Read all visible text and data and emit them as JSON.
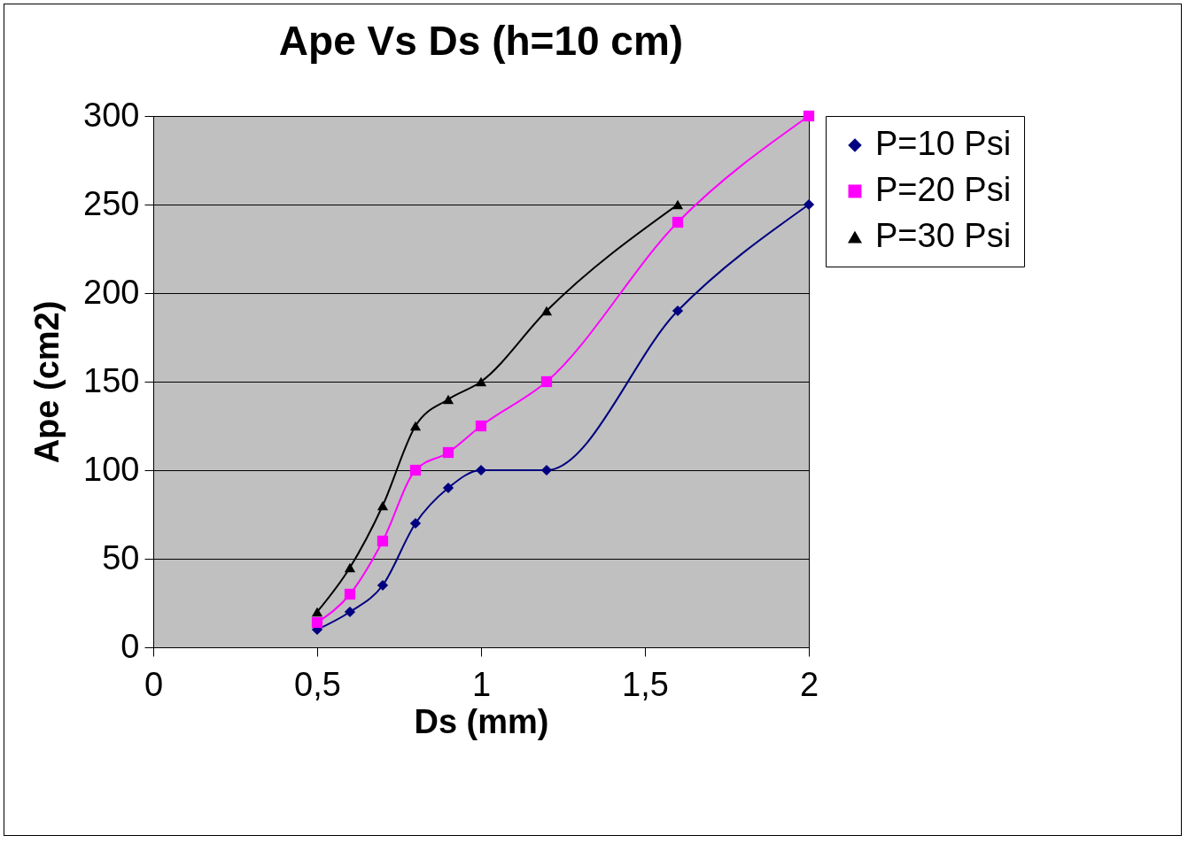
{
  "chart_data": {
    "type": "line",
    "title": "Ape Vs Ds (h=10 cm)",
    "xlabel": "Ds (mm)",
    "ylabel": "Ape (cm2)",
    "x": [
      0.5,
      0.6,
      0.7,
      0.8,
      0.9,
      1,
      1.2,
      1.6,
      2
    ],
    "series": [
      {
        "name": "P=10 Psi",
        "color": "#000080",
        "marker": "diamond",
        "values": [
          10,
          20,
          35,
          70,
          90,
          100,
          100,
          190,
          250
        ]
      },
      {
        "name": "P=20 Psi",
        "color": "#ff00ff",
        "marker": "square",
        "values": [
          14,
          30,
          60,
          100,
          110,
          125,
          150,
          240,
          300
        ]
      },
      {
        "name": "P=30 Psi",
        "color": "#000000",
        "marker": "triangle",
        "values": [
          20,
          45,
          80,
          125,
          140,
          150,
          190,
          250,
          null
        ]
      }
    ],
    "xlim": [
      0,
      2
    ],
    "xticks": [
      0,
      {
        "value": 0.5,
        "label": "0,5"
      },
      1,
      {
        "value": 1.5,
        "label": "1,5"
      },
      2
    ],
    "ylim": [
      0,
      300
    ],
    "yticks": [
      0,
      50,
      100,
      150,
      200,
      250,
      300
    ],
    "grid": "y",
    "legend": "right",
    "line_style": "solid"
  }
}
